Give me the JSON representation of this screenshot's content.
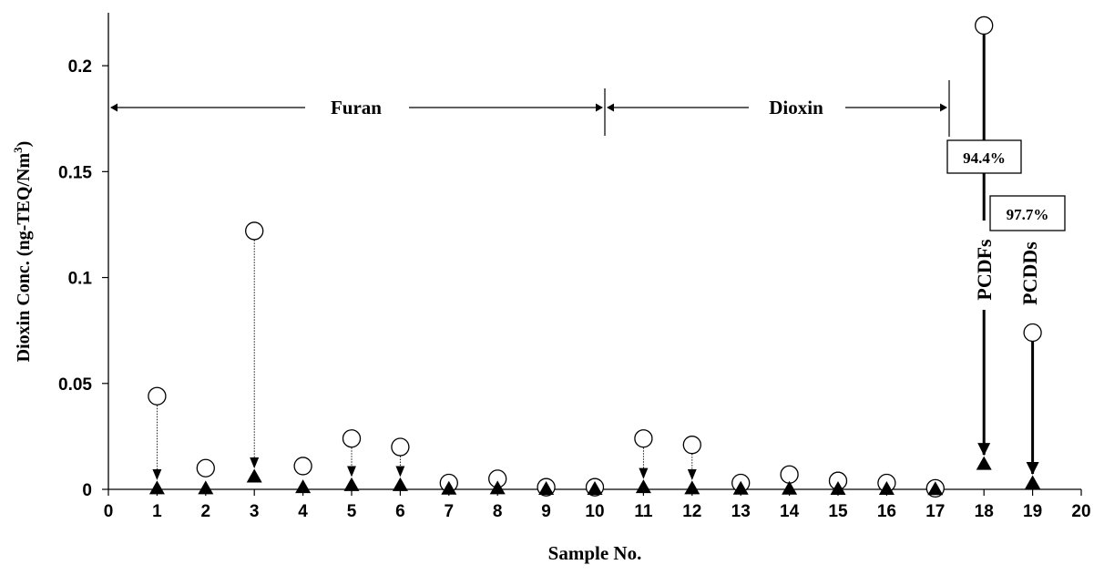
{
  "chart_data": {
    "type": "scatter",
    "title": "",
    "xlabel": "Sample No.",
    "ylabel": "Dioxin Conc. (ng-TEQ/Nm",
    "ylabel_superscript": "3",
    "ylabel_suffix": ")",
    "xlim": [
      0,
      20
    ],
    "ylim": [
      0,
      0.225
    ],
    "x_ticks": [
      "0",
      "1",
      "2",
      "3",
      "4",
      "5",
      "6",
      "7",
      "8",
      "9",
      "10",
      "11",
      "12",
      "13",
      "14",
      "15",
      "16",
      "17",
      "18",
      "19",
      "20"
    ],
    "y_ticks": [
      "0",
      "0.05",
      "0.1",
      "0.15",
      "0.2"
    ],
    "grid": false,
    "legend": "none",
    "series": [
      {
        "marker": "open-circle",
        "x": [
          1,
          2,
          3,
          4,
          5,
          6,
          7,
          8,
          9,
          10,
          11,
          12,
          13,
          14,
          15,
          16,
          17,
          18,
          19
        ],
        "values": [
          0.044,
          0.01,
          0.122,
          0.011,
          0.024,
          0.02,
          0.003,
          0.005,
          0.001,
          0.001,
          0.024,
          0.021,
          0.003,
          0.007,
          0.004,
          0.003,
          0.0005,
          0.219,
          0.074
        ]
      },
      {
        "marker": "filled-triangle",
        "x": [
          1,
          2,
          3,
          4,
          5,
          6,
          7,
          8,
          9,
          10,
          11,
          12,
          13,
          14,
          15,
          16,
          17,
          18,
          19
        ],
        "values": [
          0.0005,
          0.0005,
          0.006,
          0.001,
          0.002,
          0.002,
          0.0003,
          0.0005,
          0.0002,
          0.0002,
          0.001,
          0.0005,
          0.0003,
          0.0003,
          0.0002,
          0.0002,
          0.0001,
          0.012,
          0.003
        ]
      }
    ],
    "annotations": {
      "furan": {
        "label": "Furan",
        "x_start": 0,
        "x_end": 10.2
      },
      "dioxin": {
        "label": "Dioxin",
        "x_start": 10.2,
        "x_end": 17.3
      },
      "sample18": {
        "label": "PCDFs",
        "percent": "94.4%"
      },
      "sample19": {
        "label": "PCDDs",
        "percent": "97.7%"
      }
    }
  }
}
